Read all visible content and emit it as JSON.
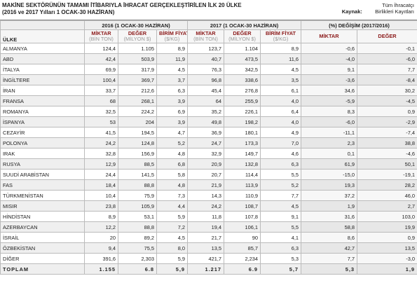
{
  "header": {
    "title": "MAKİNE SEKTÖRÜNÜN TAMAMI İTİBARIYLA İHRACAT GERÇEKLEŞTİRİLEN İLK 20 ÜLKE",
    "subtitle": "(2016 ve 2017 Yılları 1 OCAK-30 HAZİRAN)",
    "source_label": "Kaynak:",
    "source": "Tüm İhracatçı Birlikleri Kayıtları"
  },
  "table": {
    "groups": [
      "2016 (1 OCAK-30 HAZİRAN)",
      "2017 (1 OCAK-30 HAZİRAN)",
      "(%) DEĞİŞİM (2017/2016)"
    ],
    "row_header": "ÜLKE",
    "columns": [
      {
        "name": "MİKTAR",
        "unit": "(BİN TON)"
      },
      {
        "name": "DEĞER",
        "unit": "(MİLYON $)"
      },
      {
        "name": "BİRİM FİYAT",
        "unit": "($/KG)"
      },
      {
        "name": "MİKTAR",
        "unit": "(BİN TON)"
      },
      {
        "name": "DEĞER",
        "unit": "(MİLYON $)"
      },
      {
        "name": "BİRİM FİYAT",
        "unit": "($/KG)"
      },
      {
        "name": "MİKTAR"
      },
      {
        "name": "DEĞER"
      }
    ],
    "rows": [
      [
        "ALMANYA",
        "124,4",
        "1.105",
        "8,9",
        "123,7",
        "1.104",
        "8,9",
        "-0,6",
        "-0,1"
      ],
      [
        "ABD",
        "42,4",
        "503,9",
        "11,9",
        "40,7",
        "473,5",
        "11,6",
        "-4,0",
        "-6,0"
      ],
      [
        "İTALYA",
        "69,9",
        "317,9",
        "4,5",
        "76,3",
        "342,5",
        "4,5",
        "9,1",
        "7,7"
      ],
      [
        "İNGİLTERE",
        "100,4",
        "369,7",
        "3,7",
        "96,8",
        "338,6",
        "3,5",
        "-3,6",
        "-8,4"
      ],
      [
        "İRAN",
        "33,7",
        "212,6",
        "6,3",
        "45,4",
        "276,8",
        "6,1",
        "34,6",
        "30,2"
      ],
      [
        "FRANSA",
        "68",
        "268,1",
        "3,9",
        "64",
        "255,9",
        "4,0",
        "-5,9",
        "-4,5"
      ],
      [
        "ROMANYA",
        "32,5",
        "224,2",
        "6,9",
        "35,2",
        "226,1",
        "6,4",
        "8,3",
        "0,9"
      ],
      [
        "İSPANYA",
        "53",
        "204",
        "3,9",
        "49,8",
        "198,2",
        "4,0",
        "-6,0",
        "-2,9"
      ],
      [
        "CEZAYİR",
        "41,5",
        "194,5",
        "4,7",
        "36,9",
        "180,1",
        "4,9",
        "-11,1",
        "-7,4"
      ],
      [
        "POLONYA",
        "24,2",
        "124,8",
        "5,2",
        "24,7",
        "173,3",
        "7,0",
        "2,3",
        "38,8"
      ],
      [
        "IRAK",
        "32,8",
        "156,9",
        "4,8",
        "32,9",
        "149,7",
        "4,6",
        "0,1",
        "-4,6"
      ],
      [
        "RUSYA",
        "12,9",
        "88,5",
        "6,8",
        "20,9",
        "132,8",
        "6,3",
        "61,9",
        "50,1"
      ],
      [
        "SUUDİ ARABİSTAN",
        "24,4",
        "141,5",
        "5,8",
        "20,7",
        "114,4",
        "5,5",
        "-15,0",
        "-19,1"
      ],
      [
        "FAS",
        "18,4",
        "88,8",
        "4,8",
        "21,9",
        "113,9",
        "5,2",
        "19,3",
        "28,2"
      ],
      [
        "TÜRKMENİSTAN",
        "10,4",
        "75,9",
        "7,3",
        "14,3",
        "110,9",
        "7,7",
        "37,2",
        "46,0"
      ],
      [
        "MISIR",
        "23,8",
        "105,9",
        "4,4",
        "24,2",
        "108,7",
        "4,5",
        "1,9",
        "2,7"
      ],
      [
        "HİNDİSTAN",
        "8,9",
        "53,1",
        "5,9",
        "11,8",
        "107,8",
        "9,1",
        "31,6",
        "103,0"
      ],
      [
        "AZERBAYCAN",
        "12,2",
        "88,8",
        "7,2",
        "19,4",
        "106,1",
        "5,5",
        "58,8",
        "19,9"
      ],
      [
        "İSRAİL",
        "20",
        "89,2",
        "4,5",
        "21,7",
        "90",
        "4,1",
        "8,6",
        "0,9"
      ],
      [
        "ÖZBEKİSTAN",
        "9,4",
        "75,5",
        "8,0",
        "13,5",
        "85,7",
        "6,3",
        "42,7",
        "13,5"
      ],
      [
        "DİĞER",
        "391,6",
        "2,303",
        "5,9",
        "421,7",
        "2,234",
        "5,3",
        "7,7",
        "-3,0"
      ],
      [
        "TOPLAM",
        "1.155",
        "6.8",
        "5,9",
        "1.217",
        "6.9",
        "5,7",
        "5,3",
        "1,9"
      ]
    ]
  }
}
